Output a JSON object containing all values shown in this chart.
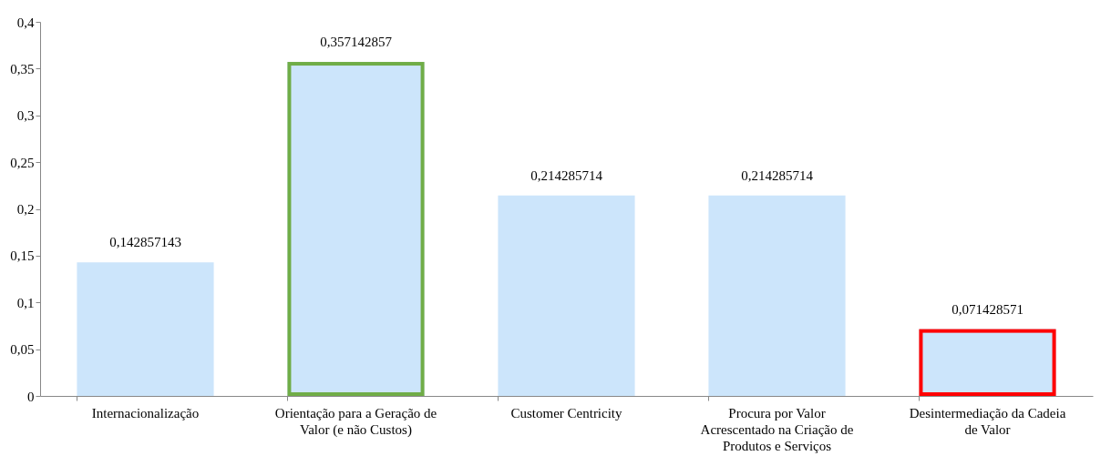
{
  "chart_data": {
    "type": "bar",
    "categories": [
      "Internacionalização",
      "Orientação para a Geração de Valor (e não Custos)",
      "Customer Centricity",
      "Procura por Valor Acrescentado na Criação de Produtos e Serviços",
      "Desintermediação da Cadeia de Valor"
    ],
    "values": [
      0.142857143,
      0.357142857,
      0.214285714,
      0.214285714,
      0.071428571
    ],
    "value_labels": [
      "0,142857143",
      "0,357142857",
      "0,214285714",
      "0,214285714",
      "0,071428571"
    ],
    "color": "#cce5fb",
    "ylim": [
      0,
      0.4
    ],
    "yticks": [
      0,
      {
        "value": 0.05,
        "label": "0,05"
      },
      {
        "value": 0.1,
        "label": "0,1"
      },
      {
        "value": 0.15,
        "label": "0,15"
      },
      {
        "value": 0.2,
        "label": "0,2"
      },
      {
        "value": 0.25,
        "label": "0,25"
      },
      {
        "value": 0.3,
        "label": "0,3"
      },
      {
        "value": 0.35,
        "label": "0,35"
      },
      {
        "value": 0.4,
        "label": "0,4"
      }
    ],
    "grid": false
  }
}
